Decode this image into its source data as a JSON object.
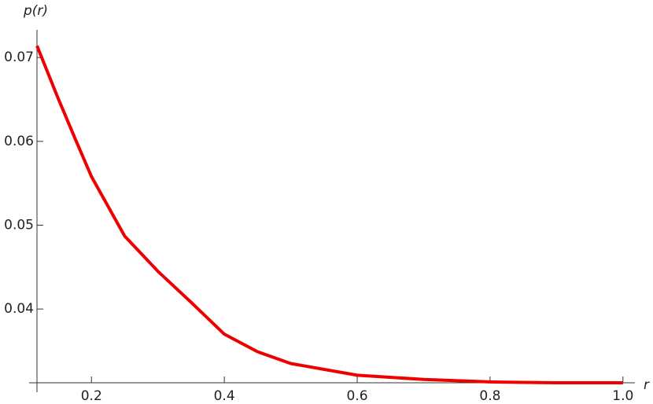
{
  "chart_data": {
    "type": "line",
    "xlabel": "r",
    "ylabel": "p(r)",
    "x": [
      0.118,
      0.15,
      0.175,
      0.2,
      0.25,
      0.3,
      0.35,
      0.4,
      0.45,
      0.5,
      0.6,
      0.7,
      0.8,
      0.9,
      1.0
    ],
    "series": [
      {
        "color": "#ee0000",
        "values": [
          0.0714,
          0.0651,
          0.0604,
          0.0558,
          0.0487,
          0.0445,
          0.0408,
          0.037,
          0.0349,
          0.0335,
          0.0321,
          0.0316,
          0.0313,
          0.0312,
          0.0312
        ]
      }
    ],
    "xlim": [
      0.118,
      1.018
    ],
    "ylim": [
      0.0312,
      0.0733
    ],
    "xticks": [
      0.2,
      0.4,
      0.6,
      0.8,
      {
        "value": 1.0,
        "label": "1.0"
      }
    ],
    "yticks": [
      0.04,
      0.05,
      0.06,
      0.07
    ]
  }
}
